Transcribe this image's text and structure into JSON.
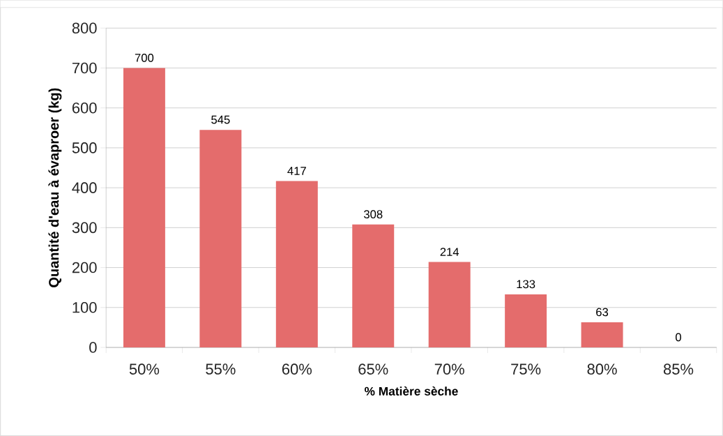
{
  "chart_data": {
    "type": "bar",
    "xlabel": "% Matière sèche",
    "ylabel": "Quantité d'eau à évaproer (kg)",
    "categories": [
      "50%",
      "55%",
      "60%",
      "65%",
      "70%",
      "75%",
      "80%",
      "85%"
    ],
    "values": [
      700,
      545,
      417,
      308,
      214,
      133,
      63,
      0
    ],
    "color": "#e46c6c",
    "ylim": [
      0,
      800
    ],
    "yticks": [
      0,
      100,
      200,
      300,
      400,
      500,
      600,
      700,
      800
    ],
    "grid": "y",
    "data_labels": true
  }
}
